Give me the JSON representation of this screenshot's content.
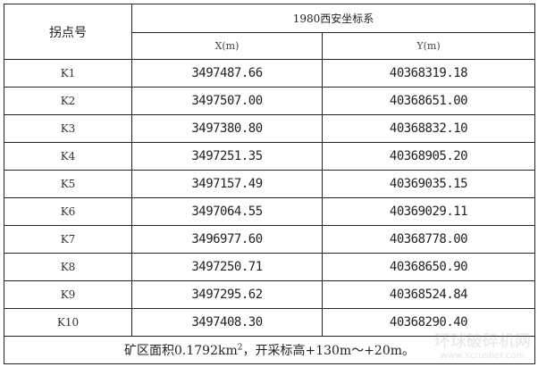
{
  "header": {
    "point_label": "拐点号",
    "system": "1980西安坐标系",
    "x_label": "X(m)",
    "y_label": "Y(m)"
  },
  "rows": [
    {
      "point": "K1",
      "x": "3497487.66",
      "y": "40368319.18"
    },
    {
      "point": "K2",
      "x": "3497507.00",
      "y": "40368651.00"
    },
    {
      "point": "K3",
      "x": "3497380.80",
      "y": "40368832.10"
    },
    {
      "point": "K4",
      "x": "3497251.35",
      "y": "40368905.20"
    },
    {
      "point": "K5",
      "x": "3497157.49",
      "y": "40369035.15"
    },
    {
      "point": "K6",
      "x": "3497064.55",
      "y": "40369029.11"
    },
    {
      "point": "K7",
      "x": "3496977.60",
      "y": "40368778.00"
    },
    {
      "point": "K8",
      "x": "3497250.71",
      "y": "40368650.90"
    },
    {
      "point": "K9",
      "x": "3497295.62",
      "y": "40368524.84"
    },
    {
      "point": "K10",
      "x": "3497408.30",
      "y": "40368290.40"
    }
  ],
  "footer": {
    "prefix": "矿区面积0.1792km",
    "sup": "2",
    "suffix": "，开采标高+130m～+20m。"
  },
  "watermark": {
    "name": "环球破碎机网",
    "url": "www.Ycrusher.com"
  }
}
